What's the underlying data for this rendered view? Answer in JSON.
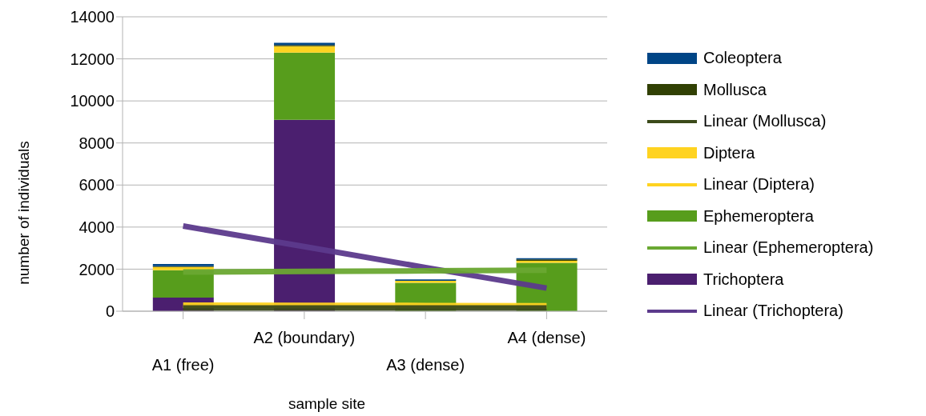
{
  "chart_data": {
    "type": "bar",
    "stacked": true,
    "xlabel": "sample site",
    "ylabel": "number of individuals",
    "categories": [
      "A1 (free)",
      "A2 (boundary)",
      "A3 (dense)",
      "A4 (dense)"
    ],
    "series": [
      {
        "name": "Linear (Trichoptera)",
        "type": "line",
        "color": "#5c3a8c",
        "values": [
          4050,
          3070,
          2080,
          1100
        ]
      },
      {
        "name": "Trichoptera",
        "color": "#4b1f6f",
        "values": [
          650,
          9100,
          null,
          null
        ]
      },
      {
        "name": "Linear (Ephemeroptera)",
        "type": "line",
        "color": "#6aa832",
        "values": [
          1860,
          1890,
          1920,
          1950
        ]
      },
      {
        "name": "Ephemeroptera",
        "color": "#579d1c",
        "values": [
          1300,
          3200,
          1350,
          2300
        ]
      },
      {
        "name": "Linear (Diptera)",
        "type": "line",
        "color": "#ffd320",
        "values": [
          290,
          280,
          270,
          260
        ]
      },
      {
        "name": "Diptera",
        "color": "#ffd320",
        "values": [
          150,
          300,
          100,
          100
        ]
      },
      {
        "name": "Linear (Mollusca)",
        "type": "line",
        "color": "#3b4a1a",
        "values": [
          150,
          150,
          150,
          150
        ]
      },
      {
        "name": "Mollusca",
        "color": "#314004",
        "values": [
          40,
          60,
          null,
          60
        ]
      },
      {
        "name": "Coleoptera",
        "color": "#004586",
        "values": [
          100,
          100,
          60,
          60
        ]
      }
    ],
    "ylim": [
      0,
      14000
    ],
    "yticks": [
      0,
      2000,
      4000,
      6000,
      8000,
      10000,
      12000,
      14000
    ],
    "grid": "y",
    "legend": "right"
  }
}
